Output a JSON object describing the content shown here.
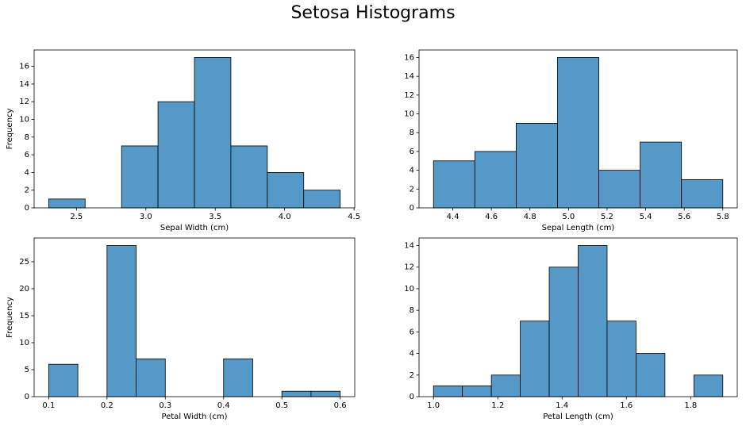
{
  "title": "Setosa Histograms",
  "chart_data": [
    {
      "type": "histogram",
      "xlabel": "Sepal Width (cm)",
      "ylabel": "Frequency",
      "color": "#5599c8",
      "bins": [
        2.3,
        2.5625,
        2.825,
        3.0875,
        3.35,
        3.6125,
        3.875,
        4.1375,
        4.4
      ],
      "values": [
        1,
        0,
        7,
        12,
        17,
        7,
        4,
        2
      ],
      "xlim": [
        2.195,
        4.505
      ],
      "xticks": [
        2.5,
        {
          "value": 3,
          "label": "3.0"
        },
        3.5,
        {
          "value": 4,
          "label": "4.0"
        },
        4.5
      ],
      "ylim": [
        0,
        17.85
      ],
      "yticks": [
        0,
        2,
        4,
        6,
        8,
        10,
        12,
        14,
        16
      ]
    },
    {
      "type": "histogram",
      "xlabel": "Sepal Length (cm)",
      "color": "#5599c8",
      "bins": [
        4.3,
        4.5143,
        4.7286,
        4.9429,
        5.1571,
        5.3714,
        5.5857,
        5.8
      ],
      "values": [
        5,
        6,
        9,
        16,
        4,
        7,
        3
      ],
      "xlim": [
        4.225,
        5.875
      ],
      "xticks": [
        4.4,
        4.6,
        4.8,
        {
          "value": 5,
          "label": "5.0"
        },
        5.2,
        5.4,
        5.6,
        5.8
      ],
      "ylim": [
        0,
        16.8
      ],
      "yticks": [
        0,
        2,
        4,
        6,
        8,
        10,
        12,
        14,
        16
      ]
    },
    {
      "type": "histogram",
      "xlabel": "Petal Width (cm)",
      "ylabel": "Frequency",
      "color": "#5599c8",
      "bins": [
        0.1,
        0.15,
        0.2,
        0.25,
        0.3,
        0.35,
        0.4,
        0.45,
        0.5,
        0.55,
        0.6
      ],
      "values": [
        6,
        0,
        28,
        7,
        0,
        0,
        7,
        0,
        1,
        1
      ],
      "xlim": [
        0.075,
        0.625
      ],
      "xticks": [
        0.1,
        0.2,
        0.3,
        0.4,
        0.5,
        0.6
      ],
      "ylim": [
        0,
        29.4
      ],
      "yticks": [
        0,
        5,
        10,
        15,
        20,
        25
      ]
    },
    {
      "type": "histogram",
      "xlabel": "Petal Length (cm)",
      "color": "#5599c8",
      "bins": [
        1.0,
        1.09,
        1.18,
        1.27,
        1.36,
        1.45,
        1.54,
        1.63,
        1.72,
        1.81,
        1.9
      ],
      "values": [
        1,
        1,
        2,
        7,
        12,
        14,
        7,
        4,
        0,
        2
      ],
      "xlim": [
        0.955,
        1.945
      ],
      "xticks": [
        {
          "value": 1,
          "label": "1.0"
        },
        1.2,
        1.4,
        1.6,
        1.8
      ],
      "ylim": [
        0,
        14.7
      ],
      "yticks": [
        0,
        2,
        4,
        6,
        8,
        10,
        12,
        14
      ]
    }
  ]
}
